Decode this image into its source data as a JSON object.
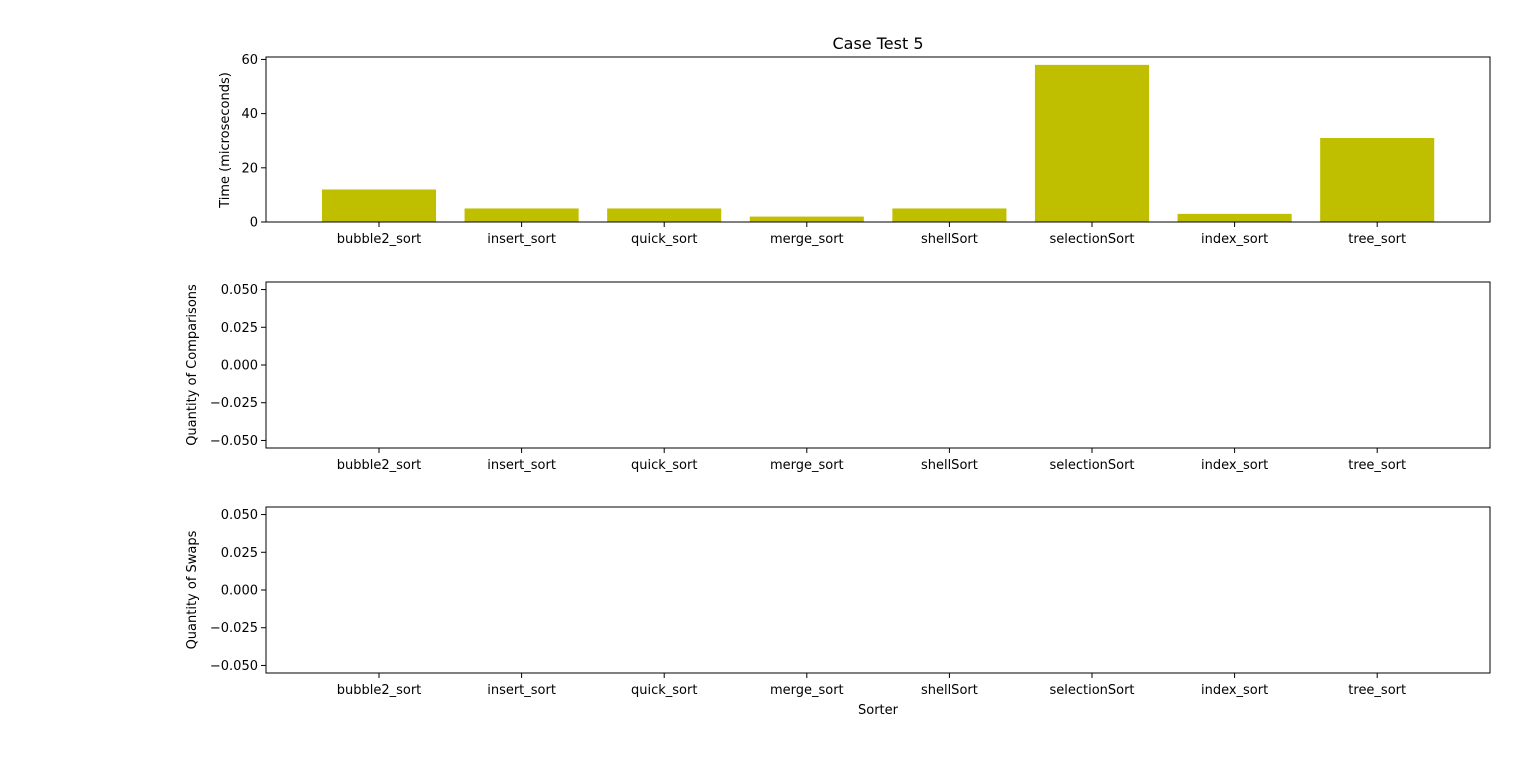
{
  "chart_data": [
    {
      "type": "bar",
      "title": "Case Test 5",
      "xlabel": "",
      "ylabel": "Time (microseconds)",
      "categories": [
        "bubble2_sort",
        "insert_sort",
        "quick_sort",
        "merge_sort",
        "shellSort",
        "selectionSort",
        "index_sort",
        "tree_sort"
      ],
      "values": [
        12,
        5,
        5,
        2,
        5,
        58,
        3,
        31
      ],
      "ylim": [
        0,
        60.9
      ],
      "yticks": [
        0,
        20,
        40,
        60
      ],
      "ytick_labels": [
        "0",
        "20",
        "40",
        "60"
      ],
      "bar_color": "#bfbf00",
      "grid": false
    },
    {
      "type": "bar",
      "title": "",
      "xlabel": "",
      "ylabel": "Quantity of Comparisons",
      "categories": [
        "bubble2_sort",
        "insert_sort",
        "quick_sort",
        "merge_sort",
        "shellSort",
        "selectionSort",
        "index_sort",
        "tree_sort"
      ],
      "values": [
        0,
        0,
        0,
        0,
        0,
        0,
        0,
        0
      ],
      "ylim": [
        -0.055,
        0.055
      ],
      "yticks": [
        -0.05,
        -0.025,
        0,
        0.025,
        0.05
      ],
      "ytick_labels": [
        "−0.050",
        "−0.025",
        "0.000",
        "0.025",
        "0.050"
      ],
      "bar_color": "#bfbf00",
      "grid": false
    },
    {
      "type": "bar",
      "title": "",
      "xlabel": "Sorter",
      "ylabel": "Quantity of Swaps",
      "categories": [
        "bubble2_sort",
        "insert_sort",
        "quick_sort",
        "merge_sort",
        "shellSort",
        "selectionSort",
        "index_sort",
        "tree_sort"
      ],
      "values": [
        0,
        0,
        0,
        0,
        0,
        0,
        0,
        0
      ],
      "ylim": [
        -0.055,
        0.055
      ],
      "yticks": [
        -0.05,
        -0.025,
        0,
        0.025,
        0.05
      ],
      "ytick_labels": [
        "−0.050",
        "−0.025",
        "0.000",
        "0.025",
        "0.050"
      ],
      "bar_color": "#bfbf00",
      "grid": false
    }
  ]
}
